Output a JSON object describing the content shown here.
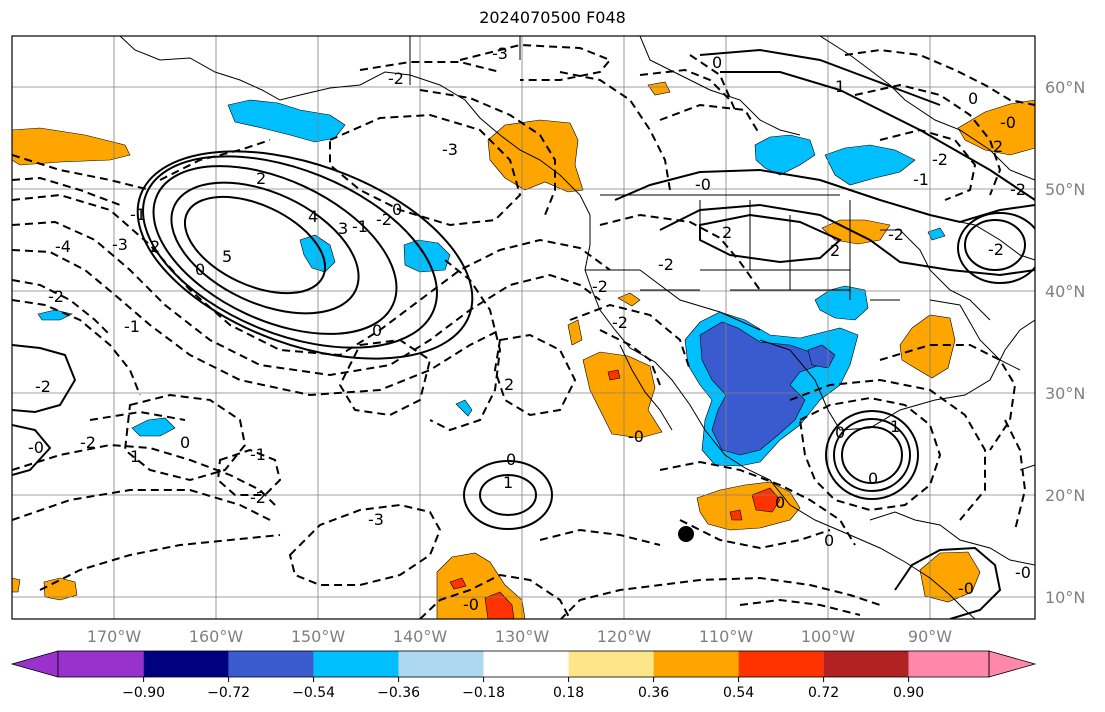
{
  "title": "2024070500 F048",
  "map": {
    "lon_labels": [
      "170°W",
      "160°W",
      "150°W",
      "140°W",
      "130°W",
      "120°W",
      "110°W",
      "100°W",
      "90°W"
    ],
    "lat_labels": [
      "60°N",
      "50°N",
      "40°N",
      "30°N",
      "20°N",
      "10°N"
    ],
    "contour_labels": [
      "-3",
      "-2",
      "-3",
      "0",
      "-2",
      "-1",
      "2",
      "4",
      "3",
      "2",
      "-1",
      "0",
      "5",
      "-4",
      "-3",
      "-2",
      "-1",
      "-2",
      "-0",
      "-2",
      "1",
      "0",
      "-1",
      "-2",
      "-3",
      "0",
      "2",
      "-2",
      "-2",
      "-0",
      "1",
      "0",
      "-0",
      "-2",
      "-0",
      "0",
      "0",
      "2",
      "2",
      "-2",
      "1",
      "0",
      "-1",
      "-2",
      "2",
      "-0",
      "-2",
      "-2",
      "1",
      "0",
      "-0",
      "-0",
      "0",
      "0"
    ],
    "marker": "black-dot",
    "colors": {
      "strong_negative": "#3a5bcf",
      "moderate_negative": "#00bfff",
      "positive": "#ffa500",
      "strong_positive": "#ff3300",
      "grid": "#808080"
    }
  },
  "colorbar": {
    "ticks": [
      "−0.90",
      "−0.72",
      "−0.54",
      "−0.36",
      "−0.18",
      "0.18",
      "0.36",
      "0.54",
      "0.72",
      "0.90"
    ],
    "bins": [
      {
        "color": "#9932cc"
      },
      {
        "color": "#000080"
      },
      {
        "color": "#3a5bcf"
      },
      {
        "color": "#00bfff"
      },
      {
        "color": "#add8f0"
      },
      {
        "color": "#ffffff"
      },
      {
        "color": "#fde68a"
      },
      {
        "color": "#ffa500"
      },
      {
        "color": "#ff3300"
      },
      {
        "color": "#b22222"
      },
      {
        "color": "#ff88aa"
      }
    ]
  }
}
